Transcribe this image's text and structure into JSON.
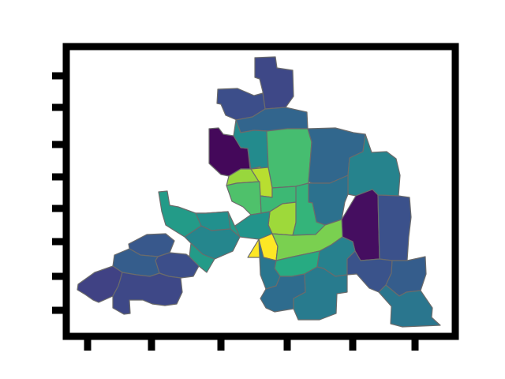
{
  "map": {
    "type": "choropleth",
    "colormap": "viridis",
    "title": "",
    "xlabel": "",
    "ylabel": "",
    "x_tick_labels": [
      "",
      "",
      "",
      "",
      "",
      ""
    ],
    "y_tick_labels": [
      "",
      "",
      "",
      "",
      "",
      "",
      "",
      ""
    ],
    "boundary_color": "#6b6b6b",
    "frame_color": "#000000",
    "regions": [
      {
        "id": "north-peak",
        "value": 0.22
      },
      {
        "id": "north-cap",
        "value": 0.24
      },
      {
        "id": "north-upper",
        "value": 0.33
      },
      {
        "id": "northwest-dark",
        "value": 0.02
      },
      {
        "id": "north-teal",
        "value": 0.48
      },
      {
        "id": "north-center-green",
        "value": 0.7
      },
      {
        "id": "northeast-blue",
        "value": 0.34
      },
      {
        "id": "west-center-light",
        "value": 0.85
      },
      {
        "id": "center-yellowgreen-a",
        "value": 0.9
      },
      {
        "id": "center-green-b",
        "value": 0.72
      },
      {
        "id": "center-green-c",
        "value": 0.68
      },
      {
        "id": "east-teal-upper",
        "value": 0.45
      },
      {
        "id": "east-blue-upper",
        "value": 0.38
      },
      {
        "id": "east-dark-strip",
        "value": 0.04
      },
      {
        "id": "east-far-blue",
        "value": 0.25
      },
      {
        "id": "center-lime",
        "value": 0.86
      },
      {
        "id": "center-mid-green",
        "value": 0.66
      },
      {
        "id": "center-teal-south",
        "value": 0.52
      },
      {
        "id": "center-yellow",
        "value": 1.0
      },
      {
        "id": "center-limegreen-south",
        "value": 0.8
      },
      {
        "id": "south-center-green",
        "value": 0.62
      },
      {
        "id": "southeast-teal",
        "value": 0.44
      },
      {
        "id": "west-arm-teal",
        "value": 0.55
      },
      {
        "id": "west-arm-upper",
        "value": 0.5
      },
      {
        "id": "west-arm-mid",
        "value": 0.46
      },
      {
        "id": "southwest-blue-a",
        "value": 0.28
      },
      {
        "id": "southwest-blue-b",
        "value": 0.24
      },
      {
        "id": "southwest-blue-c",
        "value": 0.3
      },
      {
        "id": "southwest-tip",
        "value": 0.2
      },
      {
        "id": "southwest-lower",
        "value": 0.22
      },
      {
        "id": "south-teal-a",
        "value": 0.4
      },
      {
        "id": "south-blue-b",
        "value": 0.36
      },
      {
        "id": "south-teal-c",
        "value": 0.42
      },
      {
        "id": "southeast-blue-a",
        "value": 0.26
      },
      {
        "id": "southeast-blue-b",
        "value": 0.3
      },
      {
        "id": "southeast-tail",
        "value": 0.4
      }
    ]
  }
}
